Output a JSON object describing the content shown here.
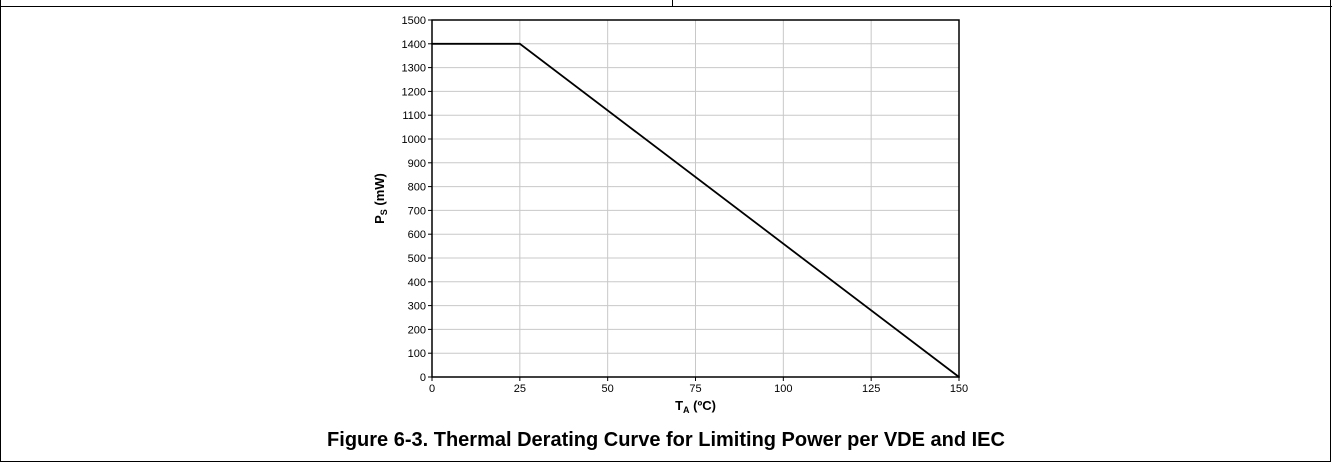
{
  "figure": {
    "caption": "Figure 6-3. Thermal Derating Curve for Limiting Power per VDE and IEC"
  },
  "chart_data": {
    "type": "line",
    "xlabel_main": "T",
    "xlabel_sub": "A",
    "xlabel_unit": " (ºC)",
    "ylabel_main": "P",
    "ylabel_sub": "S",
    "ylabel_unit": " (mW)",
    "xlim": [
      0,
      150
    ],
    "ylim": [
      0,
      1500
    ],
    "x_ticks": [
      0,
      25,
      50,
      75,
      100,
      125,
      150
    ],
    "y_ticks": [
      0,
      100,
      200,
      300,
      400,
      500,
      600,
      700,
      800,
      900,
      1000,
      1100,
      1200,
      1300,
      1400,
      1500
    ],
    "grid": true,
    "series": [
      {
        "x": [
          0,
          25,
          150
        ],
        "y": [
          1400,
          1400,
          0
        ],
        "color": "#000000"
      }
    ]
  }
}
